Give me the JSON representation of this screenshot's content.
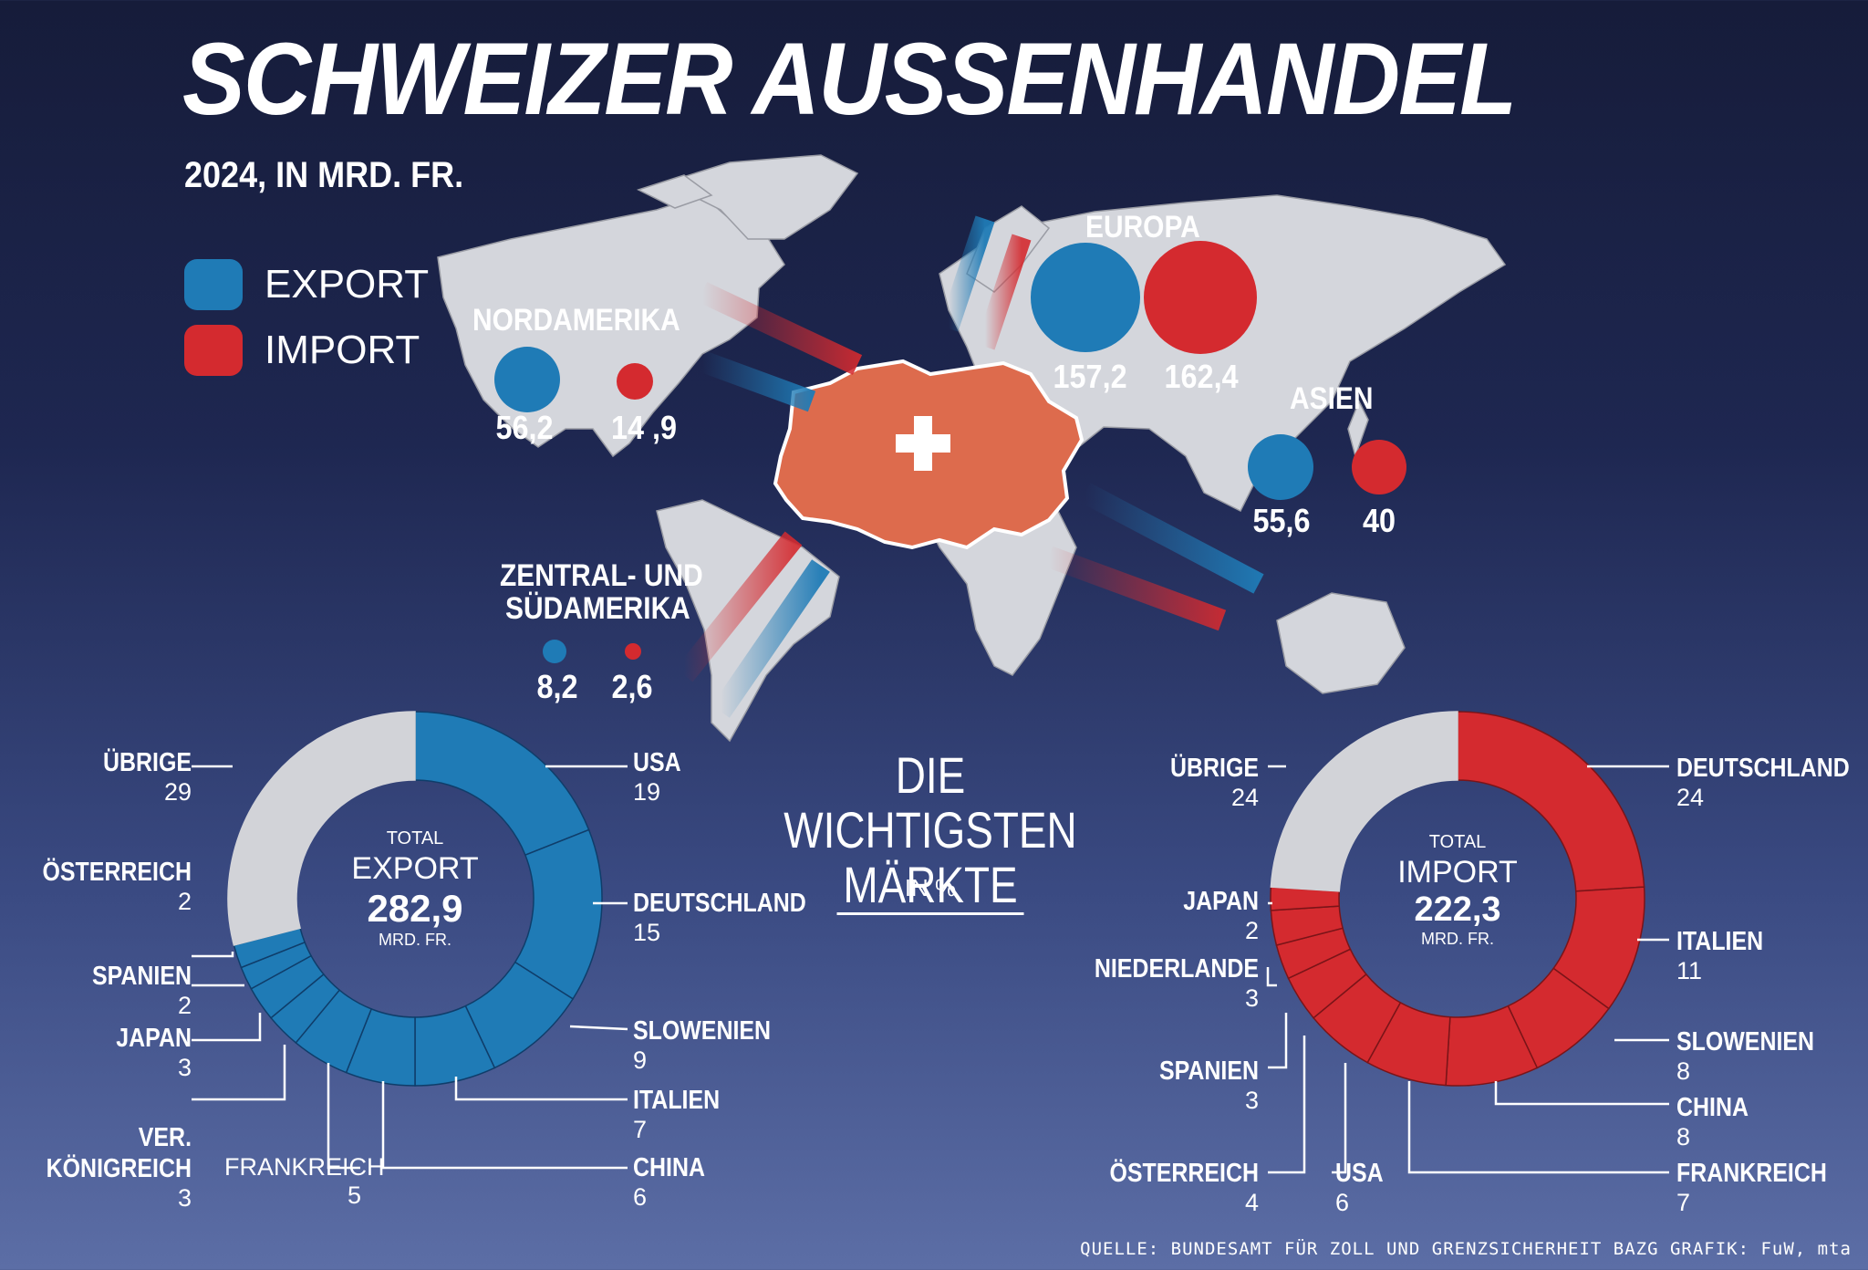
{
  "title": "SCHWEIZER AUSSENHANDEL",
  "subtitle": "2024, IN MRD. FR.",
  "legend": [
    {
      "label": "EXPORT",
      "color": "#1f7bb6"
    },
    {
      "label": "IMPORT",
      "color": "#d42a2f"
    }
  ],
  "regions": [
    {
      "name": "NORDAMERIKA",
      "export": "56,2",
      "import": "14 ,9"
    },
    {
      "name": "EUROPA",
      "export": "157,2",
      "import": "162,4"
    },
    {
      "name": "ASIEN",
      "export": "55,6",
      "import": "40"
    },
    {
      "name_line1": "ZENTRAL- UND",
      "name_line2": "SÜDAMERIKA",
      "export": "8,2",
      "import": "2,6"
    }
  ],
  "center": {
    "line1": "DIE WICHTIGSTEN",
    "line2": "MÄRKTE",
    "unit": "IN %"
  },
  "export_donut": {
    "total_label": "TOTAL",
    "type_label": "EXPORT",
    "value": "282,9",
    "unit": "MRD. FR."
  },
  "import_donut": {
    "total_label": "TOTAL",
    "type_label": "IMPORT",
    "value": "222,3",
    "unit": "MRD. FR."
  },
  "chart_data": [
    {
      "type": "map-bubbles",
      "title": "SCHWEIZER AUSSENHANDEL",
      "subtitle": "2024, IN MRD. FR.",
      "regions": [
        "NORDAMERIKA",
        "EUROPA",
        "ASIEN",
        "ZENTRAL- UND SÜDAMERIKA"
      ],
      "series": [
        {
          "name": "EXPORT",
          "values": [
            56.2,
            157.2,
            55.6,
            8.2
          ]
        },
        {
          "name": "IMPORT",
          "values": [
            14.9,
            162.4,
            40,
            2.6
          ]
        }
      ]
    },
    {
      "type": "pie",
      "variant": "donut",
      "series_name": "EXPORT",
      "total": 282.9,
      "categories": [
        "USA",
        "DEUTSCHLAND",
        "SLOWENIEN",
        "ITALIEN",
        "CHINA",
        "FRANKREICH",
        "VER. KÖNIGREICH",
        "JAPAN",
        "SPANIEN",
        "ÖSTERREICH",
        "ÜBRIGE"
      ],
      "values": [
        19,
        15,
        9,
        7,
        6,
        5,
        3,
        3,
        2,
        2,
        29
      ],
      "labels": [
        {
          "name": "USA",
          "value": "19"
        },
        {
          "name": "DEUTSCHLAND",
          "value": "15"
        },
        {
          "name": "SLOWENIEN",
          "value": "9"
        },
        {
          "name": "ITALIEN",
          "value": "7"
        },
        {
          "name": "CHINA",
          "value": "6"
        },
        {
          "name": "FRANKREICH",
          "value": "5"
        },
        {
          "name": "VER. KÖNIGREICH",
          "value": "3"
        },
        {
          "name": "JAPAN",
          "value": "3"
        },
        {
          "name": "SPANIEN",
          "value": "2"
        },
        {
          "name": "ÖSTERREICH",
          "value": "2"
        },
        {
          "name": "ÜBRIGE",
          "value": "29"
        }
      ]
    },
    {
      "type": "pie",
      "variant": "donut",
      "series_name": "IMPORT",
      "total": 222.3,
      "categories": [
        "DEUTSCHLAND",
        "ITALIEN",
        "SLOWENIEN",
        "CHINA",
        "FRANKREICH",
        "USA",
        "ÖSTERREICH",
        "SPANIEN",
        "NIEDERLANDE",
        "JAPAN",
        "ÜBRIGE"
      ],
      "values": [
        24,
        11,
        8,
        8,
        7,
        6,
        4,
        3,
        3,
        2,
        24
      ],
      "labels": [
        {
          "name": "DEUTSCHLAND",
          "value": "24"
        },
        {
          "name": "ITALIEN",
          "value": "11"
        },
        {
          "name": "SLOWENIEN",
          "value": "8"
        },
        {
          "name": "CHINA",
          "value": "8"
        },
        {
          "name": "FRANKREICH",
          "value": "7"
        },
        {
          "name": "USA",
          "value": "6"
        },
        {
          "name": "ÖSTERREICH",
          "value": "4"
        },
        {
          "name": "SPANIEN",
          "value": "3"
        },
        {
          "name": "NIEDERLANDE",
          "value": "3"
        },
        {
          "name": "JAPAN",
          "value": "2"
        },
        {
          "name": "ÜBRIGE",
          "value": "24"
        }
      ]
    }
  ],
  "source": "QUELLE: BUNDESAMT FÜR ZOLL UND GRENZSICHERHEIT BAZG   GRAFIK: FuW, mta"
}
